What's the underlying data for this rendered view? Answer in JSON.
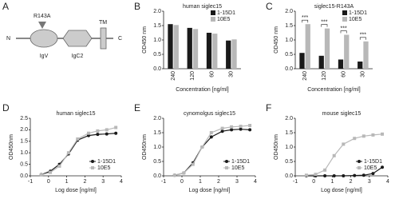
{
  "diagram": {
    "panel": "A",
    "mutation": "R143A",
    "n_terminus": "N",
    "domains": [
      "IgV",
      "IgC2",
      "TM"
    ],
    "c_terminus": "C"
  },
  "chart_data": [
    {
      "type": "bar",
      "panel": "B",
      "title": "human siglec15",
      "x_label": "Concentration [ng/ml]",
      "y_label": "OD450 nm",
      "categories": [
        "240",
        "120",
        "60",
        "30"
      ],
      "series": [
        {
          "name": "1-15D1",
          "color": "#1a1a1a",
          "values": [
            1.55,
            1.42,
            1.25,
            0.98
          ]
        },
        {
          "name": "10E5",
          "color": "#b8b8b8",
          "values": [
            1.52,
            1.38,
            1.22,
            1.02
          ]
        }
      ],
      "ylim": [
        0,
        2
      ],
      "yticks": [
        {
          "value": 0,
          "label": "0.0"
        },
        {
          "value": 0.5,
          "label": "0.5"
        },
        {
          "value": 1,
          "label": "1.0"
        },
        {
          "value": 1.5,
          "label": "1.5"
        },
        {
          "value": 2,
          "label": "2.0"
        }
      ]
    },
    {
      "type": "bar",
      "panel": "C",
      "title": "siglec15-R143A",
      "x_label": "Concentration [ng/ml]",
      "y_label": "OD450 nm",
      "categories": [
        "240",
        "120",
        "60",
        "30"
      ],
      "series": [
        {
          "name": "1-15D1",
          "color": "#1a1a1a",
          "values": [
            0.55,
            0.45,
            0.32,
            0.25
          ]
        },
        {
          "name": "10E5",
          "color": "#b8b8b8",
          "values": [
            1.55,
            1.4,
            1.18,
            0.95
          ]
        }
      ],
      "annotations": [
        "***",
        "***",
        "***",
        "***"
      ],
      "ylim": [
        0,
        2
      ],
      "yticks": [
        {
          "value": 0,
          "label": "0.0"
        },
        {
          "value": 0.5,
          "label": "0.5"
        },
        {
          "value": 1,
          "label": "1.0"
        },
        {
          "value": 1.5,
          "label": "1.5"
        },
        {
          "value": 2,
          "label": "2.0"
        }
      ]
    },
    {
      "type": "line",
      "panel": "D",
      "title": "human siglec15",
      "x_label": "Log dose [ng/ml]",
      "y_label": "OD450nm",
      "x": [
        -0.4,
        0.1,
        0.6,
        1.1,
        1.6,
        2.2,
        2.7,
        3.2,
        3.7
      ],
      "series": [
        {
          "name": "1-15D1",
          "color": "#1a1a1a",
          "marker": "circle",
          "values": [
            0.05,
            0.2,
            0.5,
            0.95,
            1.55,
            1.75,
            1.8,
            1.82,
            1.85
          ]
        },
        {
          "name": "10E5",
          "color": "#b8b8b8",
          "marker": "square",
          "values": [
            0.04,
            0.15,
            0.42,
            1.0,
            1.6,
            1.85,
            1.95,
            2.0,
            2.1
          ]
        }
      ],
      "xlim": [
        -1,
        4
      ],
      "xticks": [
        -1,
        0,
        1,
        2,
        3,
        4
      ],
      "ylim": [
        0,
        2.5
      ],
      "yticks": [
        {
          "value": 0,
          "label": "0.0"
        },
        {
          "value": 0.5,
          "label": "0.5"
        },
        {
          "value": 1,
          "label": "1.0"
        },
        {
          "value": 1.5,
          "label": "1.5"
        },
        {
          "value": 2,
          "label": "2.0"
        },
        {
          "value": 2.5,
          "label": "2.5"
        }
      ]
    },
    {
      "type": "line",
      "panel": "E",
      "title": "cynomolgus siglec15",
      "x_label": "Log dose [ng/ml]",
      "y_label": "OD450nm",
      "x": [
        -0.4,
        0.1,
        0.6,
        1.1,
        1.6,
        2.2,
        2.7,
        3.2,
        3.7
      ],
      "series": [
        {
          "name": "1-15D1",
          "color": "#1a1a1a",
          "marker": "circle",
          "values": [
            0.02,
            0.1,
            0.45,
            1.0,
            1.35,
            1.55,
            1.6,
            1.62,
            1.6
          ]
        },
        {
          "name": "10E5",
          "color": "#b8b8b8",
          "marker": "square",
          "values": [
            0.02,
            0.1,
            0.4,
            1.0,
            1.5,
            1.65,
            1.7,
            1.72,
            1.75
          ]
        }
      ],
      "xlim": [
        -1,
        4
      ],
      "xticks": [
        -1,
        0,
        1,
        2,
        3,
        4
      ],
      "ylim": [
        0,
        2
      ],
      "yticks": [
        {
          "value": 0,
          "label": "0.0"
        },
        {
          "value": 0.5,
          "label": "0.5"
        },
        {
          "value": 1,
          "label": "1.0"
        },
        {
          "value": 1.5,
          "label": "1.5"
        },
        {
          "value": 2,
          "label": "2.0"
        }
      ]
    },
    {
      "type": "line",
      "panel": "F",
      "title": "mouse siglec15",
      "x_label": "Log dose [ng/ml]",
      "y_label": "OD450nm",
      "x": [
        -0.4,
        0.1,
        0.6,
        1.1,
        1.6,
        2.2,
        2.7,
        3.2,
        3.7
      ],
      "series": [
        {
          "name": "1-15D1",
          "color": "#1a1a1a",
          "marker": "circle",
          "values": [
            0,
            0,
            0,
            0,
            0,
            0.01,
            0.02,
            0.08,
            0.3
          ]
        },
        {
          "name": "10E5",
          "color": "#b8b8b8",
          "marker": "square",
          "values": [
            0.02,
            0.05,
            0.2,
            0.7,
            1.1,
            1.3,
            1.38,
            1.42,
            1.45
          ]
        }
      ],
      "xlim": [
        -1,
        4
      ],
      "xticks": [
        -1,
        0,
        1,
        2,
        3,
        4
      ],
      "ylim": [
        0,
        2
      ],
      "yticks": [
        {
          "value": 0,
          "label": "0.0"
        },
        {
          "value": 0.5,
          "label": "0.5"
        },
        {
          "value": 1,
          "label": "1.0"
        },
        {
          "value": 1.5,
          "label": "1.5"
        },
        {
          "value": 2,
          "label": "2.0"
        }
      ]
    }
  ]
}
